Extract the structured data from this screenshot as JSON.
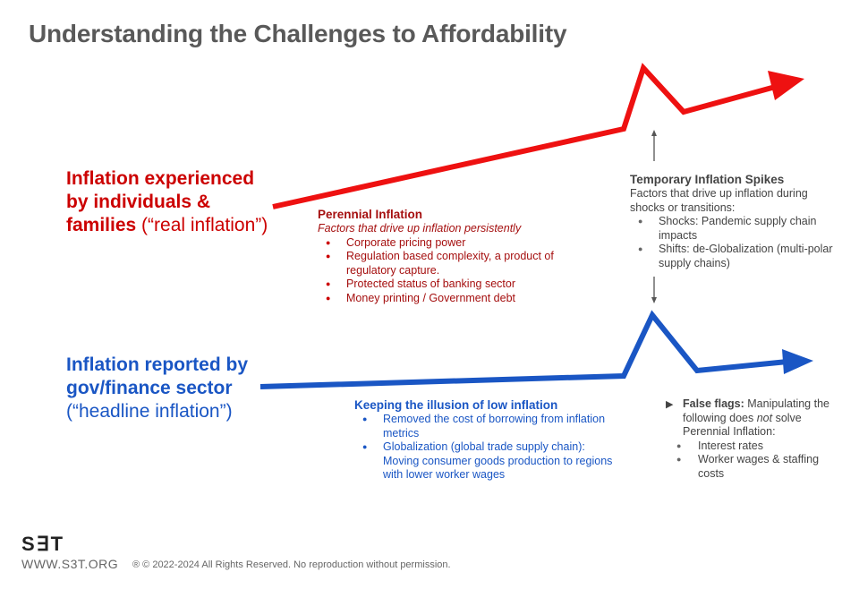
{
  "title": "Understanding the Challenges to Affordability",
  "real_inflation": {
    "label_bold": "Inflation experienced by individuals & families",
    "label_rest": " (“real inflation”)",
    "color": "#cc0000"
  },
  "headline_inflation": {
    "label_bold": "Inflation reported by gov/finance sector",
    "label_rest": " (“headline inflation”)",
    "color": "#1a56c4"
  },
  "perennial": {
    "heading": "Perennial Inflation",
    "subtitle": "Factors that drive up inflation persistently",
    "items": [
      "Corporate pricing power",
      "Regulation based complexity, a product of regulatory capture.",
      "Protected status of banking sector",
      "Money printing / Government debt"
    ]
  },
  "spikes": {
    "heading": "Temporary Inflation Spikes",
    "description": "Factors that drive up inflation during shocks or transitions:",
    "items": [
      "Shocks: Pandemic supply chain impacts",
      "Shifts:  de-Globalization (multi-polar supply chains)"
    ]
  },
  "illusion": {
    "heading": "Keeping the illusion of low inflation",
    "items": [
      "Removed the cost of borrowing from inflation metrics",
      "Globalization (global trade supply chain): Moving consumer goods production to regions with lower worker wages"
    ]
  },
  "false_flags": {
    "heading": "False flags:",
    "text_before": " Manipulating the following does ",
    "text_emphasis": "not",
    "text_after": " solve Perennial Inflation:",
    "items": [
      "Interest rates",
      "Worker wages & staffing costs"
    ]
  },
  "footer": {
    "logo": "S∃T",
    "website": "WWW.S3T.ORG",
    "copyright": "® © 2022-2024 All Rights Reserved. No reproduction without permission."
  },
  "icons": {
    "flag_marker": "play-triangle-icon"
  }
}
